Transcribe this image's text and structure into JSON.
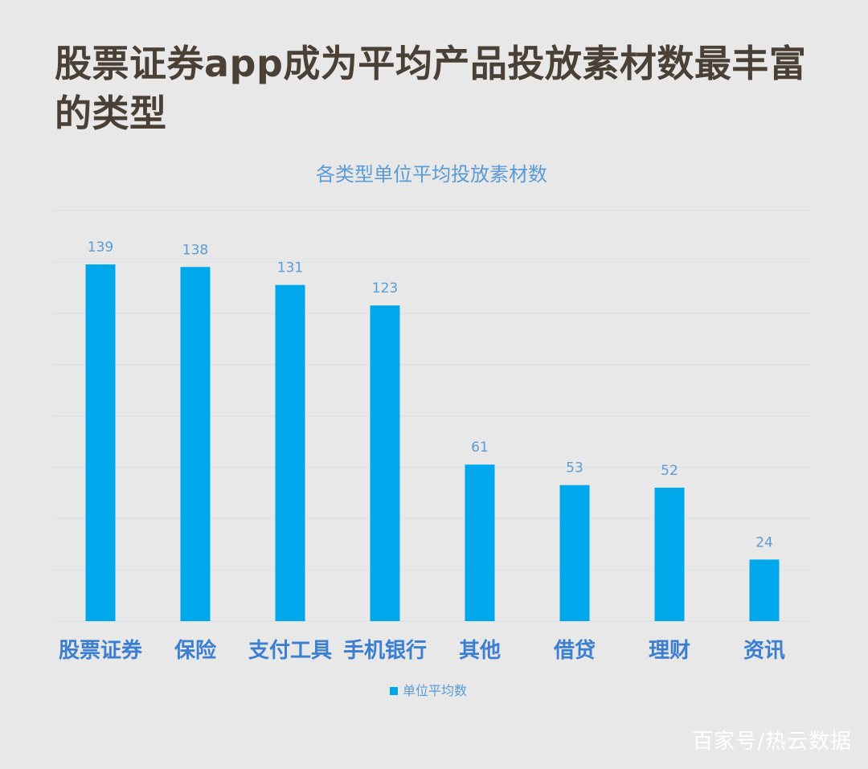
{
  "headline": "股票证券app成为平均产品投放素材数最丰富的类型",
  "watermark": "百家号/热云数据",
  "colors": {
    "bar": "#00a7ea",
    "text_blue": "#5b9bd5",
    "cat_label": "#3c7ed0",
    "gridline": "#d6e0ea"
  },
  "chart_data": {
    "type": "bar",
    "title": "各类型单位平均投放素材数",
    "categories": [
      "股票证券",
      "保险",
      "支付工具",
      "手机银行",
      "其他",
      "借贷",
      "理财",
      "资讯"
    ],
    "series": [
      {
        "name": "单位平均数",
        "values": [
          139,
          138,
          131,
          123,
          61,
          53,
          52,
          24
        ]
      }
    ],
    "ylim": [
      0,
      160
    ],
    "grid": true,
    "legend": "bottom"
  }
}
